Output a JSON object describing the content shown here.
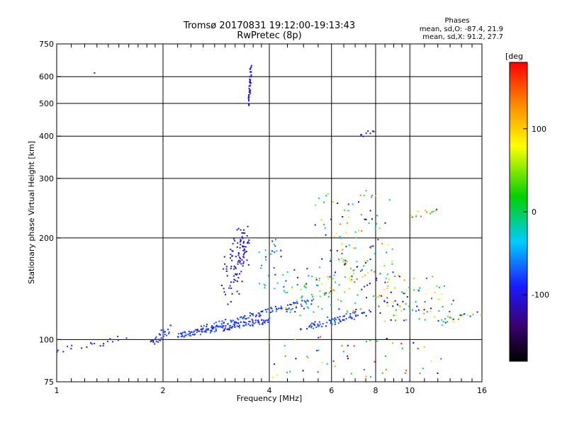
{
  "chart_data": {
    "type": "scatter",
    "title": "Tromsø 20170831 19:12:00-19:13:43",
    "subtitle": "RwPretec (8p)",
    "stats": {
      "header": "Phases",
      "line1": "mean, sd,O:  -87.4, 21.9",
      "line2": "mean, sd,X:  91.2, 27.7"
    },
    "xlabel": "Frequency [MHz]",
    "ylabel": "Stationary phase Virtual Height [km]",
    "xscale": "log",
    "yscale": "log",
    "xlim": [
      1,
      16
    ],
    "ylim": [
      75,
      750
    ],
    "x_ticks": [
      "1",
      "2",
      "4",
      "6",
      "8",
      "10",
      "16"
    ],
    "x_tick_values": [
      1,
      2,
      4,
      6,
      8,
      10,
      16
    ],
    "x_minor_values": [
      1.1,
      1.2,
      1.3,
      1.4,
      1.5,
      1.6,
      1.7,
      1.8,
      1.9,
      2.2,
      2.4,
      2.6,
      2.8,
      3,
      3.2,
      3.4,
      3.6,
      3.8,
      4.5,
      5,
      5.5,
      6.5,
      7,
      7.5,
      8.5,
      9,
      9.5,
      11,
      12,
      13,
      14,
      15
    ],
    "y_ticks": [
      "75",
      "100",
      "200",
      "300",
      "400",
      "500",
      "600",
      "750"
    ],
    "y_tick_values": [
      75,
      100,
      200,
      300,
      400,
      500,
      600,
      750
    ],
    "grid": true,
    "vertical_gridlines": [
      2,
      4,
      6,
      8,
      10
    ],
    "horizontal_gridlines": [
      100,
      200,
      300,
      400,
      500,
      600
    ],
    "colorbar": {
      "label": "[deg",
      "range": [
        -180,
        180
      ],
      "ticks": [
        "100",
        "0",
        "-100"
      ],
      "tick_values": [
        100,
        0,
        -100
      ]
    },
    "series": [
      {
        "clusters": [
          {
            "x": [
              1.0,
              1.12
            ],
            "y": [
              93,
              95
            ],
            "n": 6,
            "jx": 0.02,
            "jy": 0.02,
            "phase": [
              -100,
              -80
            ]
          },
          {
            "x": [
              1.2,
              1.55
            ],
            "y": [
              94,
              101
            ],
            "n": 14,
            "jx": 0.02,
            "jy": 0.03,
            "phase": [
              -110,
              -80
            ]
          },
          {
            "x": [
              1.85,
              2.1
            ],
            "y": [
              98,
              108
            ],
            "n": 30,
            "jx": 0.02,
            "jy": 0.03,
            "phase": [
              -100,
              -70
            ]
          },
          {
            "x": [
              2.2,
              4.0
            ],
            "y": [
              103,
              114
            ],
            "n": 140,
            "jx": 0.01,
            "jy": 0.02,
            "phase": [
              -110,
              -60
            ]
          },
          {
            "x": [
              2.6,
              5.2
            ],
            "y": [
              108,
              130
            ],
            "n": 110,
            "jx": 0.02,
            "jy": 0.02,
            "phase": [
              -100,
              -60
            ]
          },
          {
            "x": [
              3.2,
              3.5
            ],
            "y": [
              160,
              215
            ],
            "n": 60,
            "jx": 0.03,
            "jy": 0.05,
            "phase": [
              -110,
              -90
            ]
          },
          {
            "x": [
              3.0,
              3.3
            ],
            "y": [
              130,
              190
            ],
            "n": 45,
            "jx": 0.03,
            "jy": 0.06,
            "phase": [
              -120,
              -90
            ]
          },
          {
            "x": [
              3.5,
              3.55
            ],
            "y": [
              500,
              640
            ],
            "n": 40,
            "jx": 0.005,
            "jy": 0.02,
            "phase": [
              -100,
              -90
            ]
          },
          {
            "x": [
              3.8,
              4.4
            ],
            "y": [
              140,
              200
            ],
            "n": 30,
            "jx": 0.03,
            "jy": 0.05,
            "phase": [
              -100,
              0
            ]
          },
          {
            "x": [
              4.4,
              6.2
            ],
            "y": [
              120,
              160
            ],
            "n": 60,
            "jx": 0.03,
            "jy": 0.05,
            "phase": [
              -110,
              120
            ]
          },
          {
            "x": [
              5.0,
              7.5
            ],
            "y": [
              108,
              120
            ],
            "n": 70,
            "jx": 0.03,
            "jy": 0.02,
            "phase": [
              -110,
              -60
            ]
          },
          {
            "x": [
              5.5,
              8.5
            ],
            "y": [
              150,
              270
            ],
            "n": 90,
            "jx": 0.05,
            "jy": 0.08,
            "phase": [
              -150,
              150
            ]
          },
          {
            "x": [
              6.0,
              9.5
            ],
            "y": [
              115,
              180
            ],
            "n": 80,
            "jx": 0.05,
            "jy": 0.06,
            "phase": [
              -160,
              150
            ]
          },
          {
            "x": [
              8.5,
              13.0
            ],
            "y": [
              115,
              150
            ],
            "n": 70,
            "jx": 0.05,
            "jy": 0.05,
            "phase": [
              -150,
              130
            ]
          },
          {
            "x": [
              10.0,
              12.0
            ],
            "y": [
              230,
              245
            ],
            "n": 16,
            "jx": 0.03,
            "jy": 0.02,
            "phase": [
              -120,
              160
            ]
          },
          {
            "x": [
              12.0,
              15.5
            ],
            "y": [
              112,
              120
            ],
            "n": 20,
            "jx": 0.03,
            "jy": 0.02,
            "phase": [
              -110,
              120
            ]
          },
          {
            "x": [
              4.0,
              12.0
            ],
            "y": [
              78,
              100
            ],
            "n": 55,
            "jx": 0.05,
            "jy": 0.05,
            "phase": [
              -180,
              180
            ]
          },
          {
            "x": [
              7.2,
              7.9
            ],
            "y": [
              400,
              415
            ],
            "n": 8,
            "jx": 0.02,
            "jy": 0.01,
            "phase": [
              -110,
              -90
            ]
          },
          {
            "x": [
              1.28,
              1.29
            ],
            "y": [
              615,
              618
            ],
            "n": 1,
            "jx": 0.0,
            "jy": 0.0,
            "phase": [
              -100,
              -100
            ]
          }
        ]
      }
    ]
  }
}
